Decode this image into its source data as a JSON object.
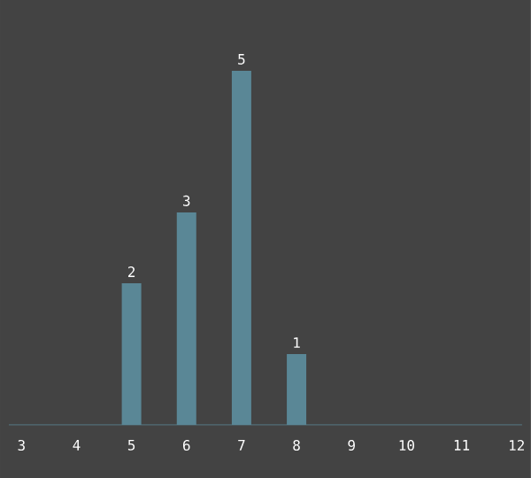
{
  "chart_data": {
    "type": "bar",
    "categories": [
      "3",
      "4",
      "5",
      "6",
      "7",
      "8",
      "9",
      "10",
      "11",
      "12"
    ],
    "values": [
      null,
      null,
      2,
      3,
      5,
      1,
      null,
      null,
      null,
      null
    ],
    "color": "#5a8796",
    "data_labels": true,
    "grid": false
  }
}
